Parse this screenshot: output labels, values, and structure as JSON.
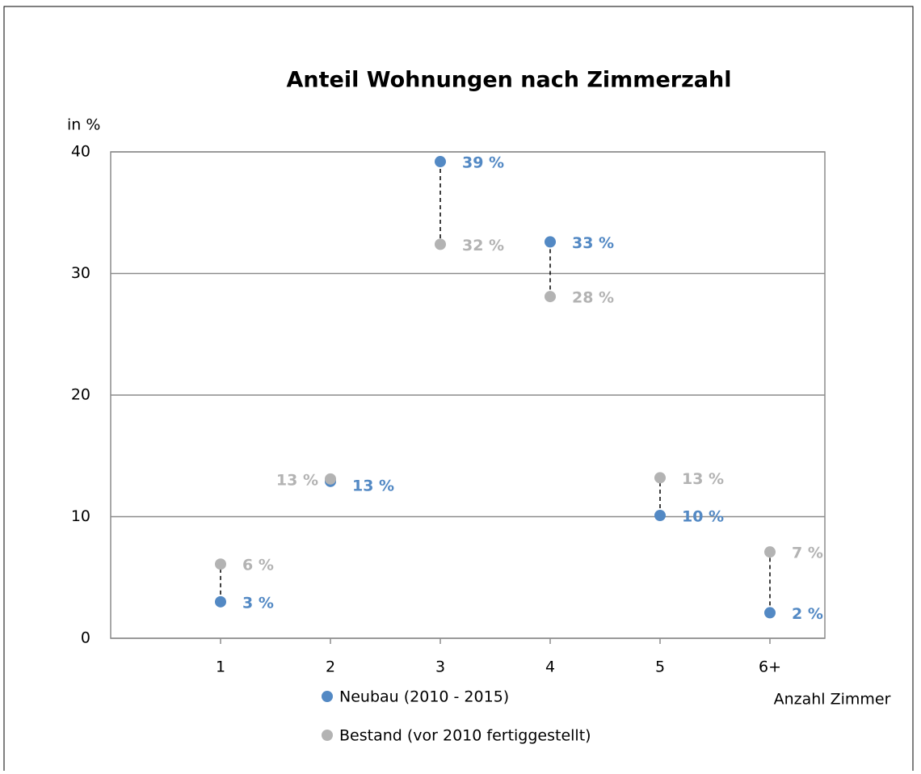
{
  "chart_data": {
    "type": "dot",
    "title": "Anteil Wohnungen nach Zimmerzahl",
    "y_label": "in %",
    "x_label": "Anzahl Zimmer",
    "categories": [
      "1",
      "2",
      "3",
      "4",
      "5",
      "6+"
    ],
    "series": [
      {
        "name": "Neubau (2010 - 2015)",
        "color": "#5389c4",
        "values": [
          3.0,
          12.9,
          39.2,
          32.6,
          10.1,
          2.1
        ],
        "value_labels": [
          "3 %",
          "13 %",
          "39 %",
          "33 %",
          "10 %",
          "2 %"
        ]
      },
      {
        "name": "Bestand (vor 2010 fertiggestellt)",
        "color": "#b3b3b3",
        "values": [
          6.1,
          13.1,
          32.4,
          28.1,
          13.2,
          7.1
        ],
        "value_labels": [
          "6 %",
          "13 %",
          "32 %",
          "28 %",
          "13 %",
          "7 %"
        ]
      }
    ],
    "ylim": [
      0,
      40
    ],
    "yticks": [
      0,
      10,
      20,
      30,
      40
    ],
    "grid": true
  }
}
